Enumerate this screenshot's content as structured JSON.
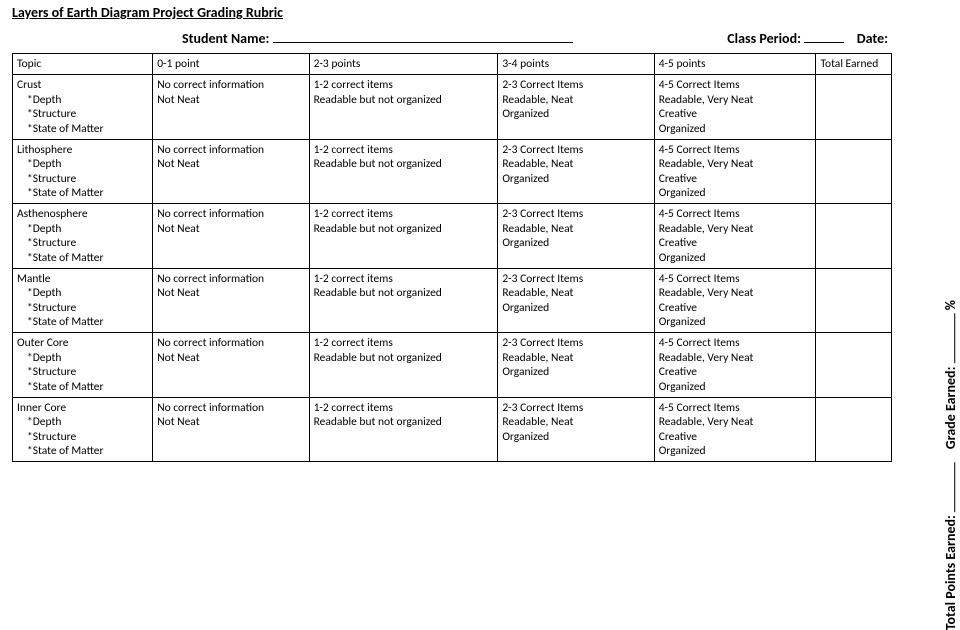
{
  "title": "Layers of Earth Diagram Project Grading Rubric",
  "header": {
    "studentName": "Student Name:",
    "classPeriod": "Class Period:",
    "date": "Date:"
  },
  "columns": [
    "Topic",
    "0-1 point",
    "2-3 points",
    "3-4 points",
    "4-5 points",
    "Total Earned"
  ],
  "topicSub": [
    "*Depth",
    "*Structure",
    "*State of Matter"
  ],
  "topics": [
    "Crust",
    "Lithosphere",
    "Asthenosphere",
    "Mantle",
    "Outer Core",
    "Inner Core"
  ],
  "cells": {
    "c01": [
      "No correct information",
      "Not Neat"
    ],
    "c23": [
      "1-2 correct items",
      "Readable but not organized"
    ],
    "c34": [
      "2-3 Correct Items",
      "Readable, Neat",
      "Organized"
    ],
    "c45": [
      "4-5 Correct Items",
      "Readable, Very Neat",
      "Creative",
      "Organized"
    ]
  },
  "side": {
    "totalPoints": "Total Points Earned:",
    "gradeEarned": "Grade Earned:",
    "percent": "%"
  }
}
